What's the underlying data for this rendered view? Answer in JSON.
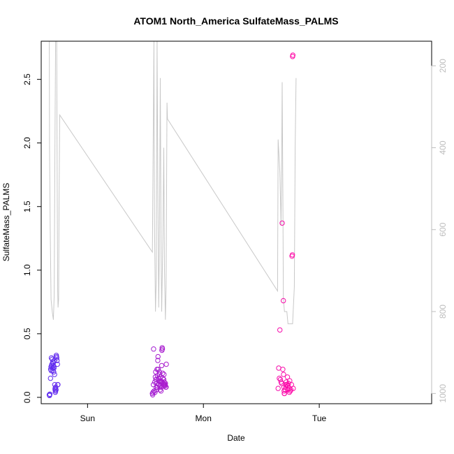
{
  "chart_data": {
    "type": "scatter",
    "title": "ATOM1 North_America SulfateMass_PALMS",
    "xlabel": "Date",
    "ylabel": "SulfateMass_PALMS",
    "x_unit": "days from Sun 00:00 (Sun=0, Mon=1, Tue=2)",
    "xlim": [
      -0.4,
      2.97
    ],
    "ylim": [
      -0.05,
      2.8
    ],
    "x_ticks": [
      {
        "value": 0,
        "label": "Sun"
      },
      {
        "value": 1,
        "label": "Mon"
      },
      {
        "value": 2,
        "label": "Tue"
      }
    ],
    "y_ticks": [
      0.0,
      0.5,
      1.0,
      1.5,
      2.0,
      2.5
    ],
    "y_tick_labels": [
      "0.0",
      "0.5",
      "1.0",
      "1.5",
      "2.0",
      "2.5"
    ],
    "right_axis": {
      "label": "",
      "ticks": [
        200,
        400,
        600,
        800,
        1000
      ],
      "lim_top": 140,
      "lim_bottom": 1025,
      "reversed": true,
      "color": "#bdbdbd"
    },
    "altitude_line": {
      "color": "#c8c8c8",
      "points": [
        [
          -0.33,
          140
        ],
        [
          -0.328,
          400
        ],
        [
          -0.322,
          600
        ],
        [
          -0.315,
          770
        ],
        [
          -0.305,
          800
        ],
        [
          -0.295,
          820
        ],
        [
          -0.288,
          760
        ],
        [
          -0.282,
          420
        ],
        [
          -0.276,
          140
        ],
        [
          -0.266,
          140
        ],
        [
          -0.262,
          500
        ],
        [
          -0.258,
          750
        ],
        [
          -0.255,
          790
        ],
        [
          -0.25,
          770
        ],
        [
          -0.246,
          560
        ],
        [
          -0.24,
          320
        ],
        [
          0.56,
          655
        ],
        [
          0.56,
          655
        ],
        [
          0.573,
          140
        ],
        [
          0.578,
          580
        ],
        [
          0.586,
          800
        ],
        [
          0.593,
          720
        ],
        [
          0.6,
          140
        ],
        [
          0.606,
          470
        ],
        [
          0.614,
          790
        ],
        [
          0.62,
          640
        ],
        [
          0.628,
          230
        ],
        [
          0.635,
          660
        ],
        [
          0.64,
          800
        ],
        [
          0.65,
          620
        ],
        [
          0.658,
          400
        ],
        [
          0.664,
          700
        ],
        [
          0.672,
          820
        ],
        [
          0.678,
          740
        ],
        [
          0.686,
          290
        ],
        [
          0.69,
          330
        ],
        [
          1.64,
          750
        ],
        [
          1.645,
          380
        ],
        [
          1.66,
          460
        ],
        [
          1.67,
          590
        ],
        [
          1.675,
          460
        ],
        [
          1.68,
          240
        ],
        [
          1.686,
          520
        ],
        [
          1.69,
          770
        ],
        [
          1.7,
          800
        ],
        [
          1.72,
          800
        ],
        [
          1.73,
          830
        ],
        [
          1.75,
          830
        ],
        [
          1.77,
          830
        ],
        [
          1.785,
          740
        ],
        [
          1.792,
          400
        ],
        [
          1.8,
          230
        ]
      ]
    },
    "series": [
      {
        "color_start": "#5e2cf0",
        "color_end": "#ff0ca8",
        "points": [
          [
            -0.33,
            0.02
          ],
          [
            -0.328,
            0.015
          ],
          [
            -0.325,
            0.025
          ],
          [
            -0.32,
            0.15
          ],
          [
            -0.318,
            0.22
          ],
          [
            -0.315,
            0.24
          ],
          [
            -0.312,
            0.31
          ],
          [
            -0.308,
            0.26
          ],
          [
            -0.305,
            0.3
          ],
          [
            -0.302,
            0.23
          ],
          [
            -0.3,
            0.21
          ],
          [
            -0.297,
            0.27
          ],
          [
            -0.295,
            0.25
          ],
          [
            -0.292,
            0.2
          ],
          [
            -0.29,
            0.23
          ],
          [
            -0.288,
            0.29
          ],
          [
            -0.285,
            0.18
          ],
          [
            -0.283,
            0.1
          ],
          [
            -0.28,
            0.06
          ],
          [
            -0.278,
            0.04
          ],
          [
            -0.275,
            0.08
          ],
          [
            -0.272,
            0.06
          ],
          [
            -0.27,
            0.33
          ],
          [
            -0.268,
            0.32
          ],
          [
            -0.266,
            0.31
          ],
          [
            -0.263,
            0.29
          ],
          [
            -0.26,
            0.26
          ],
          [
            -0.258,
            0.1
          ],
          [
            -0.256,
            0.1
          ],
          [
            -0.313,
            0.21
          ],
          [
            -0.31,
            0.25
          ],
          [
            -0.3,
            0.28
          ],
          [
            -0.29,
            0.24
          ],
          [
            -0.28,
            0.07
          ],
          [
            -0.276,
            0.05
          ],
          [
            0.56,
            0.03
          ],
          [
            0.562,
            0.02
          ],
          [
            0.565,
            0.04
          ],
          [
            0.568,
            0.1
          ],
          [
            0.57,
            0.38
          ],
          [
            0.575,
            0.05
          ],
          [
            0.58,
            0.12
          ],
          [
            0.585,
            0.16
          ],
          [
            0.588,
            0.2
          ],
          [
            0.59,
            0.14
          ],
          [
            0.593,
            0.08
          ],
          [
            0.595,
            0.06
          ],
          [
            0.598,
            0.11
          ],
          [
            0.6,
            0.22
          ],
          [
            0.603,
            0.17
          ],
          [
            0.606,
            0.29
          ],
          [
            0.608,
            0.32
          ],
          [
            0.61,
            0.22
          ],
          [
            0.612,
            0.15
          ],
          [
            0.615,
            0.1
          ],
          [
            0.618,
            0.13
          ],
          [
            0.62,
            0.2
          ],
          [
            0.622,
            0.18
          ],
          [
            0.625,
            0.12
          ],
          [
            0.628,
            0.09
          ],
          [
            0.63,
            0.16
          ],
          [
            0.633,
            0.13
          ],
          [
            0.636,
            0.08
          ],
          [
            0.638,
            0.12
          ],
          [
            0.64,
            0.25
          ],
          [
            0.642,
            0.37
          ],
          [
            0.644,
            0.39
          ],
          [
            0.646,
            0.38
          ],
          [
            0.648,
            0.19
          ],
          [
            0.65,
            0.15
          ],
          [
            0.652,
            0.11
          ],
          [
            0.655,
            0.09
          ],
          [
            0.658,
            0.14
          ],
          [
            0.66,
            0.18
          ],
          [
            0.662,
            0.12
          ],
          [
            0.665,
            0.1
          ],
          [
            0.668,
            0.09
          ],
          [
            0.67,
            0.1
          ],
          [
            0.672,
            0.11
          ],
          [
            0.675,
            0.08
          ],
          [
            0.678,
            0.08
          ],
          [
            0.68,
            0.26
          ],
          [
            0.582,
            0.04
          ],
          [
            0.592,
            0.14
          ],
          [
            0.604,
            0.08
          ],
          [
            0.616,
            0.1
          ],
          [
            0.626,
            0.06
          ],
          [
            0.634,
            0.05
          ],
          [
            0.645,
            0.12
          ],
          [
            0.657,
            0.1
          ],
          [
            1.645,
            0.07
          ],
          [
            1.65,
            0.23
          ],
          [
            1.655,
            0.15
          ],
          [
            1.66,
            0.53
          ],
          [
            1.665,
            0.14
          ],
          [
            1.67,
            0.12
          ],
          [
            1.675,
            0.11
          ],
          [
            1.68,
            1.37
          ],
          [
            1.685,
            0.22
          ],
          [
            1.69,
            0.76
          ],
          [
            1.692,
            0.18
          ],
          [
            1.695,
            0.08
          ],
          [
            1.698,
            0.03
          ],
          [
            1.7,
            0.03
          ],
          [
            1.705,
            0.06
          ],
          [
            1.71,
            0.1
          ],
          [
            1.715,
            0.12
          ],
          [
            1.72,
            0.1
          ],
          [
            1.725,
            0.16
          ],
          [
            1.73,
            0.09
          ],
          [
            1.735,
            0.11
          ],
          [
            1.74,
            0.07
          ],
          [
            1.745,
            0.13
          ],
          [
            1.75,
            0.05
          ],
          [
            1.755,
            0.06
          ],
          [
            1.76,
            0.1
          ],
          [
            1.765,
            1.11
          ],
          [
            1.77,
            2.68
          ],
          [
            1.768,
            1.12
          ],
          [
            1.772,
            2.69
          ],
          [
            1.775,
            0.07
          ],
          [
            1.697,
            0.05
          ],
          [
            1.712,
            0.08
          ],
          [
            1.728,
            0.06
          ],
          [
            1.742,
            0.04
          ]
        ]
      }
    ]
  }
}
